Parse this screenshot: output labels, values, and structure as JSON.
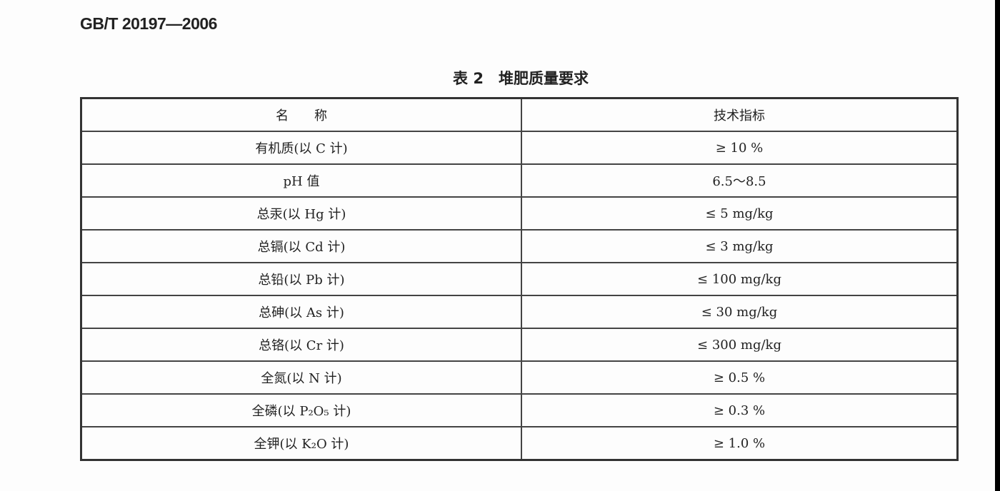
{
  "document": {
    "standard_number": "GB/T 20197—2006",
    "table_caption": "表 2　堆肥质量要求",
    "columns": [
      "名　　称",
      "技术指标"
    ],
    "rows": [
      {
        "name": "有机质(以 C 计)",
        "value": "≥ 10 %"
      },
      {
        "name": "pH 值",
        "value": "6.5～8.5"
      },
      {
        "name": "总汞(以 Hg 计)",
        "value": "≤ 5 mg/kg"
      },
      {
        "name": "总镉(以 Cd 计)",
        "value": "≤ 3 mg/kg"
      },
      {
        "name": "总铅(以 Pb 计)",
        "value": "≤ 100 mg/kg"
      },
      {
        "name": "总砷(以 As 计)",
        "value": "≤ 30 mg/kg"
      },
      {
        "name": "总铬(以 Cr 计)",
        "value": "≤ 300 mg/kg"
      },
      {
        "name": "全氮(以 N 计)",
        "value": "≥ 0.5 %"
      },
      {
        "name": "全磷(以 P₂O₅ 计)",
        "value": "≥ 0.3 %"
      },
      {
        "name": "全钾(以 K₂O 计)",
        "value": "≥ 1.0 %"
      }
    ]
  }
}
